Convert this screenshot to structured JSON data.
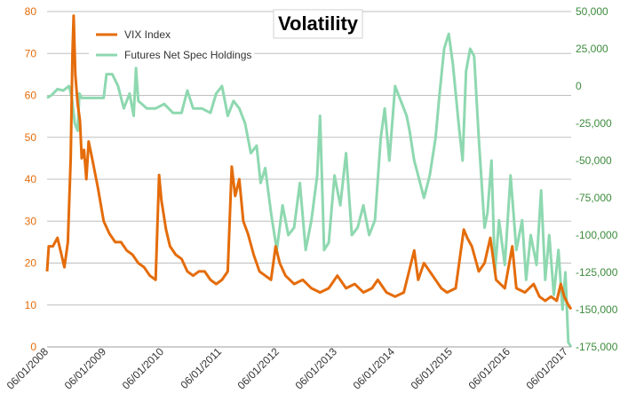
{
  "chart_data": {
    "type": "line",
    "title": "Volatility",
    "legend": [
      "VIX Index",
      "Futures Net Spec Holdings"
    ],
    "legend_position": "top-left",
    "colors": {
      "vix": "#E46C0A",
      "futures": "#8ED8B0",
      "grid": "#BFBFBF",
      "right_axis_text": "#3D8B3D"
    },
    "x_tick_labels": [
      "06/01/2008",
      "06/01/2009",
      "06/01/2010",
      "06/01/2011",
      "06/01/2012",
      "06/01/2013",
      "06/01/2014",
      "06/01/2015",
      "06/01/2016",
      "06/01/2017"
    ],
    "x_range": [
      2008.42,
      2017.5
    ],
    "y_left": {
      "min": 0,
      "max": 80,
      "ticks": [
        "0",
        "10",
        "20",
        "30",
        "40",
        "50",
        "60",
        "70",
        "80"
      ]
    },
    "y_right": {
      "min": -175000,
      "max": 50000,
      "ticks": [
        "-175,000",
        "-150,000",
        "-125,000",
        "-100,000",
        "-75,000",
        "-50,000",
        "-25,000",
        "0",
        "25,000",
        "50,000"
      ]
    },
    "series": [
      {
        "name": "VIX Index",
        "axis": "left",
        "points": [
          [
            2008.42,
            18
          ],
          [
            2008.45,
            24
          ],
          [
            2008.52,
            24
          ],
          [
            2008.6,
            26
          ],
          [
            2008.67,
            22
          ],
          [
            2008.72,
            19
          ],
          [
            2008.78,
            25
          ],
          [
            2008.83,
            45
          ],
          [
            2008.86,
            70
          ],
          [
            2008.88,
            79
          ],
          [
            2008.91,
            65
          ],
          [
            2008.95,
            58
          ],
          [
            2008.99,
            54
          ],
          [
            2009.02,
            45
          ],
          [
            2009.06,
            47
          ],
          [
            2009.1,
            40
          ],
          [
            2009.14,
            49
          ],
          [
            2009.2,
            45
          ],
          [
            2009.3,
            38
          ],
          [
            2009.4,
            30
          ],
          [
            2009.5,
            27
          ],
          [
            2009.6,
            25
          ],
          [
            2009.7,
            25
          ],
          [
            2009.8,
            23
          ],
          [
            2009.9,
            22
          ],
          [
            2010.0,
            20
          ],
          [
            2010.1,
            19
          ],
          [
            2010.2,
            17
          ],
          [
            2010.3,
            16
          ],
          [
            2010.36,
            41
          ],
          [
            2010.4,
            35
          ],
          [
            2010.48,
            28
          ],
          [
            2010.55,
            24
          ],
          [
            2010.65,
            22
          ],
          [
            2010.75,
            21
          ],
          [
            2010.85,
            18
          ],
          [
            2010.95,
            17
          ],
          [
            2011.05,
            18
          ],
          [
            2011.15,
            18
          ],
          [
            2011.25,
            16
          ],
          [
            2011.35,
            15
          ],
          [
            2011.45,
            16
          ],
          [
            2011.55,
            18
          ],
          [
            2011.62,
            43
          ],
          [
            2011.68,
            36
          ],
          [
            2011.75,
            40
          ],
          [
            2011.82,
            30
          ],
          [
            2011.9,
            27
          ],
          [
            2012.0,
            22
          ],
          [
            2012.1,
            18
          ],
          [
            2012.2,
            17
          ],
          [
            2012.3,
            16
          ],
          [
            2012.38,
            24
          ],
          [
            2012.45,
            20
          ],
          [
            2012.55,
            17
          ],
          [
            2012.7,
            15
          ],
          [
            2012.85,
            16
          ],
          [
            2013.0,
            14
          ],
          [
            2013.15,
            13
          ],
          [
            2013.3,
            14
          ],
          [
            2013.45,
            17
          ],
          [
            2013.6,
            14
          ],
          [
            2013.75,
            15
          ],
          [
            2013.9,
            13
          ],
          [
            2014.05,
            14
          ],
          [
            2014.15,
            16
          ],
          [
            2014.3,
            13
          ],
          [
            2014.45,
            12
          ],
          [
            2014.6,
            13
          ],
          [
            2014.78,
            23
          ],
          [
            2014.85,
            16
          ],
          [
            2014.95,
            20
          ],
          [
            2015.1,
            17
          ],
          [
            2015.25,
            14
          ],
          [
            2015.35,
            13
          ],
          [
            2015.5,
            14
          ],
          [
            2015.64,
            28
          ],
          [
            2015.7,
            26
          ],
          [
            2015.78,
            24
          ],
          [
            2015.9,
            18
          ],
          [
            2016.0,
            20
          ],
          [
            2016.1,
            26
          ],
          [
            2016.2,
            16
          ],
          [
            2016.35,
            14
          ],
          [
            2016.48,
            24
          ],
          [
            2016.55,
            14
          ],
          [
            2016.7,
            13
          ],
          [
            2016.85,
            15
          ],
          [
            2016.95,
            12
          ],
          [
            2017.05,
            11
          ],
          [
            2017.15,
            12
          ],
          [
            2017.25,
            11
          ],
          [
            2017.32,
            15
          ],
          [
            2017.38,
            12
          ],
          [
            2017.45,
            10
          ],
          [
            2017.5,
            9
          ]
        ]
      },
      {
        "name": "Futures Net Spec Holdings",
        "axis": "right",
        "points": [
          [
            2008.42,
            -8000
          ],
          [
            2008.5,
            -6000
          ],
          [
            2008.6,
            -2000
          ],
          [
            2008.7,
            -3000
          ],
          [
            2008.8,
            0
          ],
          [
            2008.85,
            -8000
          ],
          [
            2008.9,
            -25000
          ],
          [
            2008.95,
            -30000
          ],
          [
            2008.98,
            -5000
          ],
          [
            2009.02,
            -8000
          ],
          [
            2009.2,
            -8000
          ],
          [
            2009.4,
            -8000
          ],
          [
            2009.45,
            8000
          ],
          [
            2009.55,
            8000
          ],
          [
            2009.65,
            0
          ],
          [
            2009.75,
            -15000
          ],
          [
            2009.85,
            -5000
          ],
          [
            2009.92,
            -20000
          ],
          [
            2009.96,
            12000
          ],
          [
            2010.0,
            -10000
          ],
          [
            2010.15,
            -15000
          ],
          [
            2010.3,
            -15000
          ],
          [
            2010.45,
            -12000
          ],
          [
            2010.6,
            -18000
          ],
          [
            2010.75,
            -18000
          ],
          [
            2010.85,
            -3000
          ],
          [
            2010.95,
            -15000
          ],
          [
            2011.1,
            -15000
          ],
          [
            2011.25,
            -18000
          ],
          [
            2011.35,
            -5000
          ],
          [
            2011.45,
            0
          ],
          [
            2011.55,
            -20000
          ],
          [
            2011.65,
            -10000
          ],
          [
            2011.75,
            -15000
          ],
          [
            2011.85,
            -25000
          ],
          [
            2011.95,
            -45000
          ],
          [
            2012.05,
            -40000
          ],
          [
            2012.12,
            -65000
          ],
          [
            2012.2,
            -55000
          ],
          [
            2012.3,
            -85000
          ],
          [
            2012.4,
            -110000
          ],
          [
            2012.5,
            -80000
          ],
          [
            2012.6,
            -100000
          ],
          [
            2012.7,
            -95000
          ],
          [
            2012.8,
            -65000
          ],
          [
            2012.9,
            -110000
          ],
          [
            2013.0,
            -90000
          ],
          [
            2013.1,
            -60000
          ],
          [
            2013.15,
            -20000
          ],
          [
            2013.22,
            -110000
          ],
          [
            2013.3,
            -105000
          ],
          [
            2013.4,
            -60000
          ],
          [
            2013.5,
            -80000
          ],
          [
            2013.6,
            -45000
          ],
          [
            2013.7,
            -100000
          ],
          [
            2013.8,
            -95000
          ],
          [
            2013.9,
            -80000
          ],
          [
            2014.0,
            -100000
          ],
          [
            2014.1,
            -90000
          ],
          [
            2014.2,
            -35000
          ],
          [
            2014.27,
            -15000
          ],
          [
            2014.35,
            -50000
          ],
          [
            2014.45,
            0
          ],
          [
            2014.55,
            -10000
          ],
          [
            2014.65,
            -20000
          ],
          [
            2014.7,
            -30000
          ],
          [
            2014.78,
            -50000
          ],
          [
            2014.85,
            -60000
          ],
          [
            2014.95,
            -75000
          ],
          [
            2015.05,
            -60000
          ],
          [
            2015.15,
            -35000
          ],
          [
            2015.22,
            -5000
          ],
          [
            2015.3,
            25000
          ],
          [
            2015.38,
            35000
          ],
          [
            2015.45,
            15000
          ],
          [
            2015.55,
            -25000
          ],
          [
            2015.62,
            -50000
          ],
          [
            2015.68,
            10000
          ],
          [
            2015.75,
            25000
          ],
          [
            2015.82,
            20000
          ],
          [
            2015.9,
            -35000
          ],
          [
            2016.0,
            -95000
          ],
          [
            2016.05,
            -85000
          ],
          [
            2016.12,
            -50000
          ],
          [
            2016.18,
            -125000
          ],
          [
            2016.25,
            -90000
          ],
          [
            2016.35,
            -120000
          ],
          [
            2016.45,
            -60000
          ],
          [
            2016.55,
            -110000
          ],
          [
            2016.65,
            -90000
          ],
          [
            2016.72,
            -130000
          ],
          [
            2016.8,
            -100000
          ],
          [
            2016.9,
            -120000
          ],
          [
            2016.98,
            -70000
          ],
          [
            2017.05,
            -130000
          ],
          [
            2017.12,
            -100000
          ],
          [
            2017.2,
            -140000
          ],
          [
            2017.28,
            -110000
          ],
          [
            2017.35,
            -150000
          ],
          [
            2017.4,
            -125000
          ],
          [
            2017.45,
            -172000
          ],
          [
            2017.5,
            -175000
          ]
        ]
      }
    ]
  }
}
